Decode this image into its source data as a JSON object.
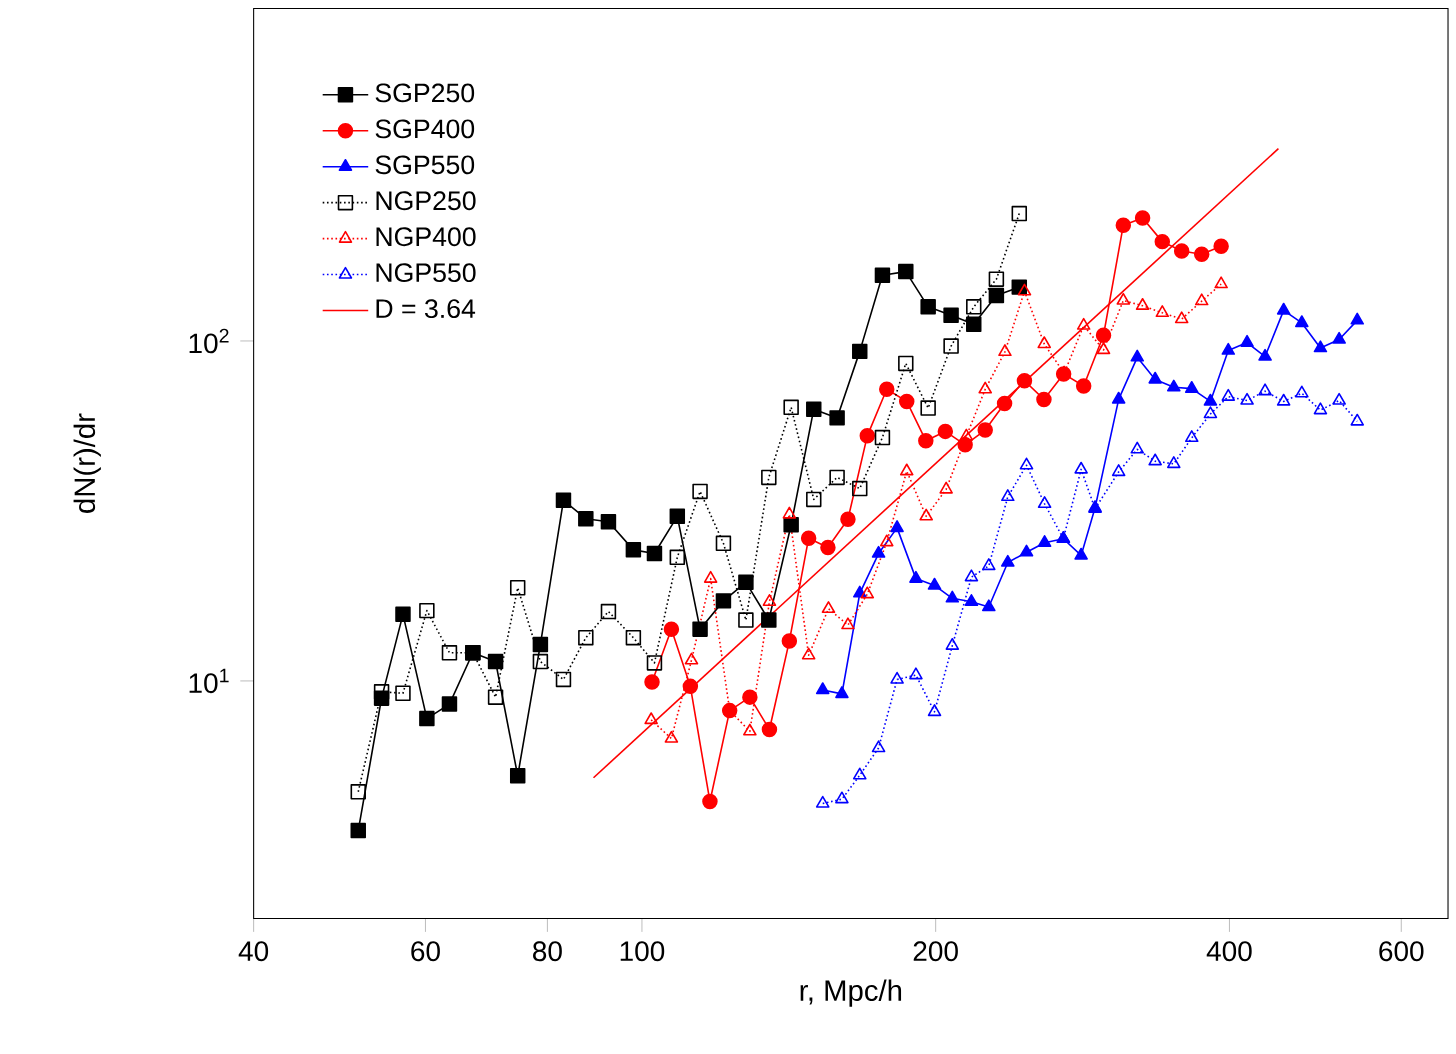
{
  "chart_data": {
    "type": "line",
    "xlabel": "r, Mpc/h",
    "ylabel": "dN(r)/dr",
    "log": "xy",
    "xlim": [
      40,
      670
    ],
    "ylim": [
      2,
      950
    ],
    "xticks": [
      40,
      60,
      80,
      100,
      200,
      400,
      600
    ],
    "yticks": [
      {
        "value": 10,
        "label": "10$^{1}$"
      },
      {
        "value": 100,
        "label": "10$^{2}$"
      }
    ],
    "legend": "top left",
    "series": [
      {
        "name": "SGP250",
        "color": "#000000",
        "marker": "square",
        "line_style": "solid",
        "x": [
          51.2,
          54.1,
          56.9,
          60.2,
          63.5,
          67.1,
          70.8,
          74.6,
          78.7,
          83.1,
          87.6,
          92.4,
          98,
          103,
          108.7,
          114.7,
          121.2,
          127.8,
          134.9,
          142.2,
          150,
          158.5,
          167.2,
          176.4,
          186.4,
          196.5,
          207.4,
          218.8,
          230.8,
          243.6
        ],
        "values": [
          3.63,
          8.9,
          15.7,
          7.75,
          8.55,
          12.1,
          11.4,
          5.26,
          12.8,
          34.0,
          30.0,
          29.4,
          24.3,
          23.7,
          30.5,
          14.2,
          17.2,
          19.5,
          15.1,
          28.8,
          63.0,
          59.4,
          93.2,
          156,
          160,
          126,
          119,
          112,
          136,
          144
        ]
      },
      {
        "name": "SGP400",
        "color": "#ff0000",
        "marker": "circle",
        "line_style": "solid",
        "x": [
          102.4,
          107.2,
          112.1,
          117.4,
          123.0,
          129,
          135.1,
          141.6,
          148.2,
          155.1,
          162.6,
          170.2,
          178.2,
          186.8,
          195.4,
          204.6,
          214.4,
          224.8,
          235.3,
          246.6,
          258.2,
          270.5,
          283.6,
          297.2,
          311.4,
          325.9,
          341.4,
          357.4,
          374.7,
          392.3
        ],
        "values": [
          9.93,
          14.2,
          9.64,
          4.42,
          8.18,
          8.96,
          7.2,
          13.1,
          26.3,
          24.7,
          29.9,
          52.6,
          72.1,
          66.4,
          50.9,
          54.2,
          49.5,
          54.7,
          65.5,
          76.4,
          67.3,
          80.0,
          73.7,
          104,
          219,
          230,
          196,
          184,
          180,
          190
        ]
      },
      {
        "name": "SGP550",
        "color": "#0000ff",
        "marker": "triangle",
        "line_style": "solid",
        "x": [
          153.2,
          160.3,
          167.2,
          174.8,
          182.6,
          190.9,
          199.5,
          208,
          217.6,
          226.7,
          237.1,
          247.8,
          258.6,
          270.3,
          281.9,
          291.3,
          308,
          321.8,
          335.7,
          350.8,
          366,
          382.5,
          399,
          417,
          435.1,
          454.6,
          474.5,
          495.8,
          518.2,
          540.8
        ],
        "values": [
          9.41,
          9.16,
          18.1,
          23.7,
          28.2,
          20.0,
          19.1,
          17.5,
          17.1,
          16.5,
          22.3,
          23.9,
          25.5,
          26.2,
          23.4,
          32.3,
          67.3,
          89.5,
          77.1,
          73.1,
          72.4,
          66.4,
          93.7,
          98.9,
          90.0,
          123,
          113,
          95.3,
          101,
          115
        ]
      },
      {
        "name": "NGP250",
        "color": "#000000",
        "marker": "square",
        "line_style": "dotted",
        "x": [
          51.2,
          54.1,
          56.9,
          60.2,
          63.5,
          67.1,
          70.8,
          74.6,
          78.7,
          83.1,
          87.6,
          92.4,
          98,
          103,
          108.7,
          114.7,
          121.2,
          127.8,
          134.9,
          142.2,
          150,
          158.5,
          167.2,
          176.4,
          186.4,
          196.5,
          207.4,
          218.8,
          230.8,
          243.6
        ],
        "values": [
          4.72,
          9.29,
          9.2,
          16.1,
          12.1,
          12.1,
          8.96,
          18.8,
          11.4,
          10.1,
          13.4,
          16.0,
          13.4,
          11.3,
          23.1,
          36.1,
          25.4,
          15.1,
          39.7,
          63.8,
          34.2,
          39.7,
          36.8,
          52.0,
          85.9,
          63.5,
          96.6,
          126,
          152,
          237
        ]
      },
      {
        "name": "NGP400",
        "color": "#ff0000",
        "marker": "triangle",
        "line_style": "dotted",
        "x": [
          102.2,
          107.2,
          112.4,
          117.6,
          123,
          129,
          135.1,
          141.6,
          148.2,
          155.3,
          162.6,
          170.2,
          178.2,
          186.8,
          195.6,
          205,
          215,
          224.8,
          235.5,
          246.6,
          258.4,
          270.8,
          283.6,
          297.2,
          311.4,
          325.9,
          341.4,
          357.4,
          374.7,
          392.3
        ],
        "values": [
          7.68,
          6.77,
          11.5,
          20.0,
          8.18,
          7.11,
          17.1,
          30.9,
          11.9,
          16.3,
          14.6,
          18.0,
          25.6,
          41.4,
          30.5,
          36.6,
          52.4,
          72.1,
          92.9,
          140,
          98.0,
          80.3,
          111,
          94.1,
          131.5,
          127,
          121,
          116,
          131,
          147
        ]
      },
      {
        "name": "NGP550",
        "color": "#0000ff",
        "marker": "triangle",
        "line_style": "dotted",
        "x": [
          153.2,
          160.3,
          167.2,
          174.8,
          182.6,
          190.9,
          199.5,
          208,
          217.6,
          226.7,
          237.1,
          247.8,
          258.6,
          270.3,
          281.9,
          291.3,
          308,
          321.8,
          335.7,
          350.8,
          366,
          382.5,
          399,
          417,
          435.1,
          454.6,
          474.5,
          495.8,
          518.2,
          540.8
        ],
        "values": [
          4.36,
          4.49,
          5.28,
          6.35,
          10.1,
          10.4,
          8.11,
          12.7,
          20.2,
          21.8,
          34.8,
          43.1,
          33.2,
          26.2,
          41.9,
          32.1,
          41.2,
          48.0,
          44.3,
          43.5,
          51.9,
          61.0,
          68.6,
          66.8,
          71.2,
          66.4,
          70.2,
          62.6,
          66.8,
          58.0
        ]
      },
      {
        "name": "D = 3.64",
        "color": "#ff0000",
        "marker": "none",
        "line_style": "solid",
        "x": [
          89.2,
          449
        ],
        "values": [
          5.19,
          368
        ]
      }
    ]
  }
}
